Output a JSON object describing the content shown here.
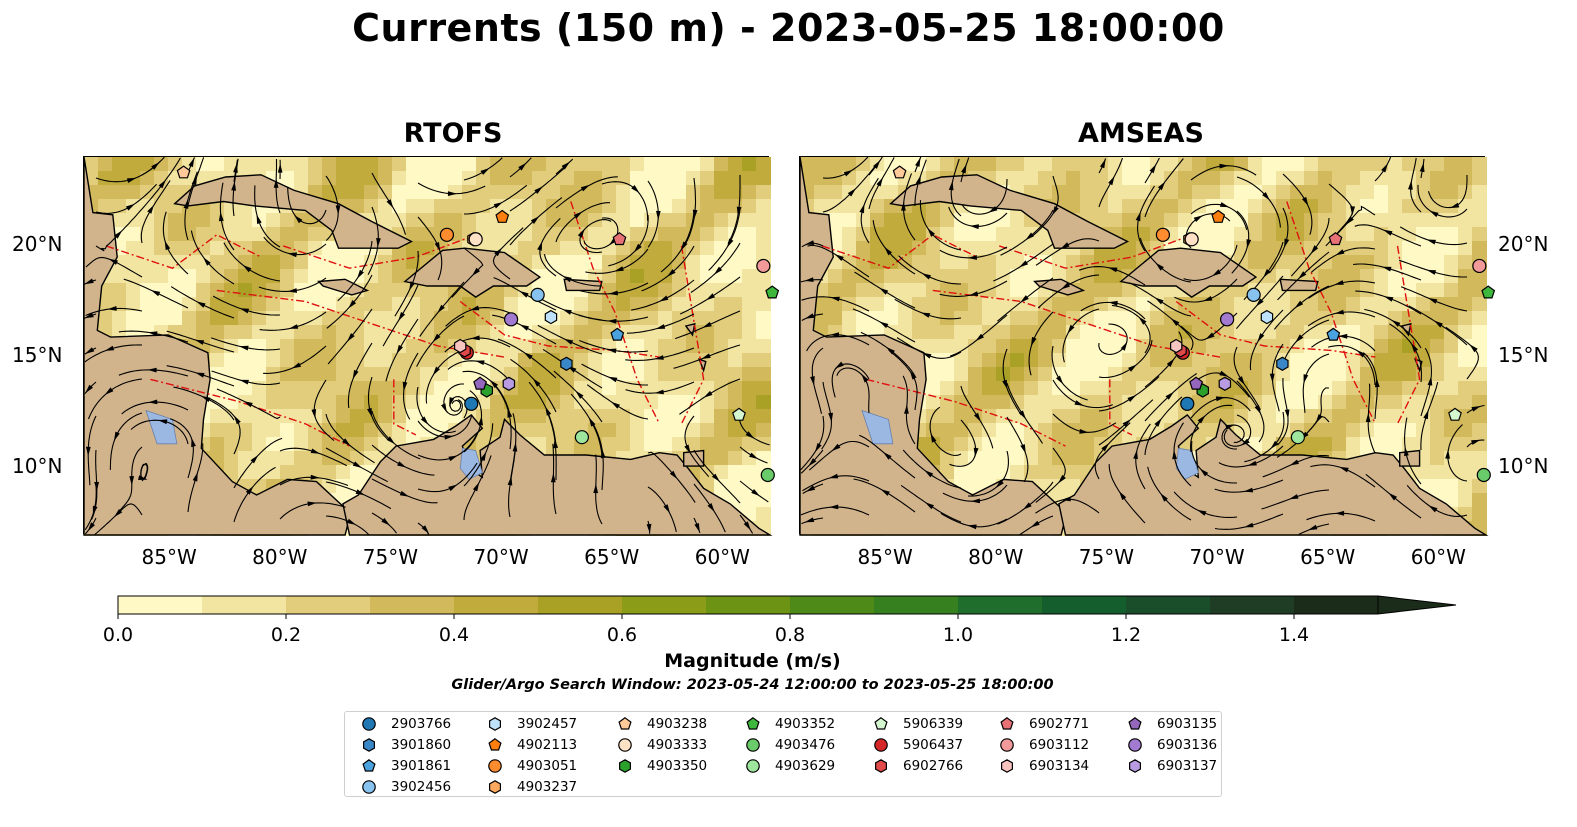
{
  "title": "Currents (150 m) - 2023-05-25 18:00:00",
  "panels": [
    {
      "title": "RTOFS"
    },
    {
      "title": "AMSEAS"
    }
  ],
  "lon_ticks": [
    "85°W",
    "80°W",
    "75°W",
    "70°W",
    "65°W",
    "60°W"
  ],
  "lat_ticks": [
    "20°N",
    "15°N",
    "10°N"
  ],
  "extent": {
    "lon": [
      -89,
      -58
    ],
    "lat": [
      7,
      24
    ]
  },
  "colorbar": {
    "label": "Magnitude (m/s)",
    "ticks": [
      "0.0",
      "0.2",
      "0.4",
      "0.6",
      "0.8",
      "1.0",
      "1.2",
      "1.4"
    ],
    "range": [
      0,
      1.5
    ],
    "extend": "max",
    "colors": [
      "#fff9c6",
      "#f2e5a1",
      "#e1cd7b",
      "#d2b95b",
      "#c1ab3d",
      "#a8a126",
      "#8a9c18",
      "#6c9313",
      "#4e8a18",
      "#378020",
      "#1f6e2c",
      "#145e2d",
      "#1a4d2a",
      "#1f3d24",
      "#1c2c1a"
    ]
  },
  "search_window": "Glider/Argo Search Window: 2023-05-24 12:00:00 to 2023-05-25 18:00:00",
  "floats": [
    {
      "id": "2903766",
      "shape": "circle",
      "color": "#1f77b4",
      "lon": -71.5,
      "lat": 12.9
    },
    {
      "id": "3901860",
      "shape": "hexagon",
      "color": "#3a87c8",
      "lon": -67.2,
      "lat": 14.7
    },
    {
      "id": "3901861",
      "shape": "pentagon",
      "color": "#4aa3df",
      "lon": -64.9,
      "lat": 16.0
    },
    {
      "id": "3902456",
      "shape": "circle",
      "color": "#88c3f0",
      "lon": -68.5,
      "lat": 17.8
    },
    {
      "id": "3902457",
      "shape": "hexagon",
      "color": "#bfe2fb",
      "lon": -67.9,
      "lat": 16.8
    },
    {
      "id": "4902113",
      "shape": "pentagon",
      "color": "#ff7f0e",
      "lon": -70.1,
      "lat": 21.3
    },
    {
      "id": "4903051",
      "shape": "circle",
      "color": "#ff8c2e",
      "lon": -72.6,
      "lat": 20.5
    },
    {
      "id": "4903237",
      "shape": "hexagon",
      "color": "#ffa95f",
      "lon": -71.4,
      "lat": 20.3
    },
    {
      "id": "4903238",
      "shape": "pentagon",
      "color": "#ffc99a",
      "lon": -84.5,
      "lat": 23.3
    },
    {
      "id": "4903333",
      "shape": "circle",
      "color": "#ffe1c6",
      "lon": -71.3,
      "lat": 20.3
    },
    {
      "id": "4903350",
      "shape": "hexagon",
      "color": "#2ca02c",
      "lon": -70.8,
      "lat": 13.5
    },
    {
      "id": "4903352",
      "shape": "pentagon",
      "color": "#3db83d",
      "lon": -57.9,
      "lat": 17.9
    },
    {
      "id": "4903476",
      "shape": "circle",
      "color": "#6acb6a",
      "lon": -58.1,
      "lat": 9.7
    },
    {
      "id": "4903629",
      "shape": "circle",
      "color": "#9ee59e",
      "lon": -66.5,
      "lat": 11.4
    },
    {
      "id": "5906339",
      "shape": "pentagon",
      "color": "#d4f7cf",
      "lon": -59.4,
      "lat": 12.4
    },
    {
      "id": "5906437",
      "shape": "circle",
      "color": "#d62728",
      "lon": -71.7,
      "lat": 15.2
    },
    {
      "id": "6902766",
      "shape": "hexagon",
      "color": "#e14a4a",
      "lon": -71.8,
      "lat": 15.3
    },
    {
      "id": "6902771",
      "shape": "pentagon",
      "color": "#e87176",
      "lon": -64.8,
      "lat": 20.3
    },
    {
      "id": "6903112",
      "shape": "circle",
      "color": "#f29a9a",
      "lon": -58.3,
      "lat": 19.1
    },
    {
      "id": "6903134",
      "shape": "hexagon",
      "color": "#f8c4c0",
      "lon": -72.0,
      "lat": 15.5
    },
    {
      "id": "6903135",
      "shape": "pentagon",
      "color": "#9467bd",
      "lon": -71.1,
      "lat": 13.8
    },
    {
      "id": "6903136",
      "shape": "circle",
      "color": "#a27ad0",
      "lon": -69.7,
      "lat": 16.7
    },
    {
      "id": "6903137",
      "shape": "hexagon",
      "color": "#b89be0",
      "lon": -69.8,
      "lat": 13.8
    }
  ],
  "colors": {
    "land": "#d2b48c",
    "water": "#9ab8e2",
    "eez": "#e01010"
  }
}
